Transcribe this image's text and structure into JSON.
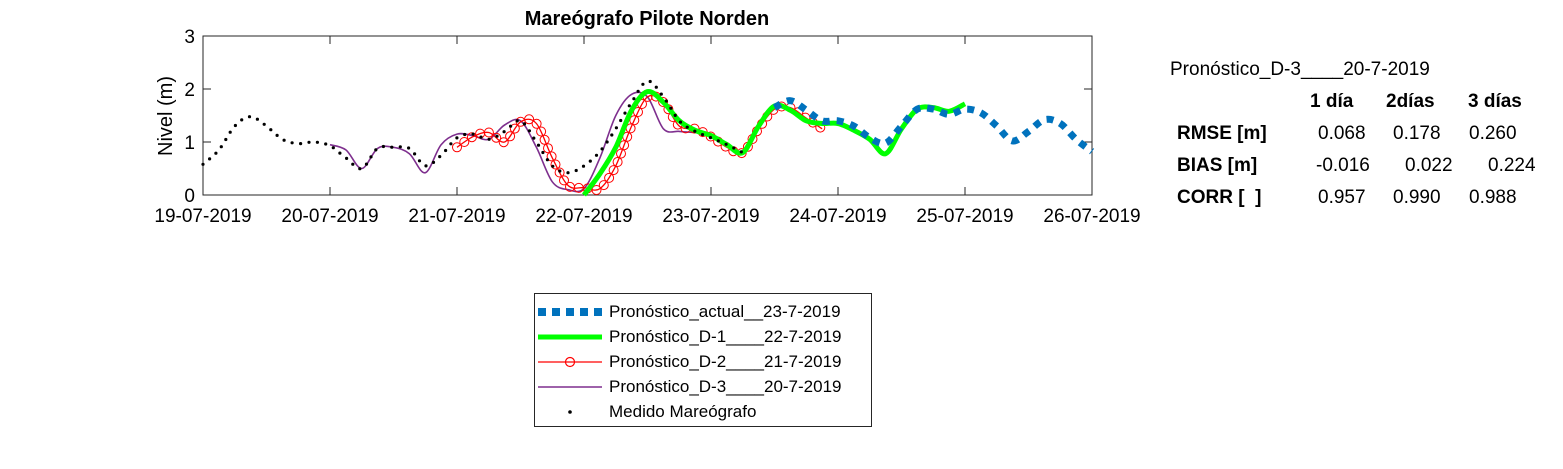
{
  "chart_data": {
    "type": "line",
    "title": "Mareógrafo Pilote Norden",
    "xlabel": "",
    "ylabel": "Nivel (m)",
    "ylim": [
      0,
      3
    ],
    "yticks": [
      0,
      1,
      2,
      3
    ],
    "xlim": [
      "2019-07-19T00:00",
      "2019-07-26T00:00"
    ],
    "xtick_labels": [
      "19-07-2019",
      "20-07-2019",
      "21-07-2019",
      "22-07-2019",
      "23-07-2019",
      "24-07-2019",
      "25-07-2019",
      "26-07-2019"
    ],
    "grid": false,
    "legend_position": "below-center",
    "series": [
      {
        "name": "Pronóstico_actual__23-7-2019",
        "color": "#0072BD",
        "style": "thick-dotted",
        "points": [
          [
            "2019-07-23T12:00",
            1.65
          ],
          [
            "2019-07-23T15:00",
            1.78
          ],
          [
            "2019-07-23T18:00",
            1.6
          ],
          [
            "2019-07-23T21:00",
            1.4
          ],
          [
            "2019-07-24T00:00",
            1.4
          ],
          [
            "2019-07-24T03:00",
            1.3
          ],
          [
            "2019-07-24T06:00",
            1.08
          ],
          [
            "2019-07-24T09:00",
            0.98
          ],
          [
            "2019-07-24T12:00",
            1.3
          ],
          [
            "2019-07-24T15:00",
            1.62
          ],
          [
            "2019-07-24T18:00",
            1.62
          ],
          [
            "2019-07-24T21:00",
            1.52
          ],
          [
            "2019-07-25T00:00",
            1.62
          ],
          [
            "2019-07-25T03:00",
            1.55
          ],
          [
            "2019-07-25T06:00",
            1.3
          ],
          [
            "2019-07-25T09:00",
            1.02
          ],
          [
            "2019-07-25T12:00",
            1.2
          ],
          [
            "2019-07-25T15:00",
            1.42
          ],
          [
            "2019-07-25T18:00",
            1.35
          ],
          [
            "2019-07-25T21:00",
            1.05
          ],
          [
            "2019-07-26T00:00",
            0.82
          ]
        ]
      },
      {
        "name": "Pronóstico_D-1____22-7-2019",
        "color": "#00FF00",
        "style": "thick-solid",
        "points": [
          [
            "2019-07-22T00:00",
            0.0
          ],
          [
            "2019-07-22T03:00",
            0.4
          ],
          [
            "2019-07-22T06:00",
            0.9
          ],
          [
            "2019-07-22T09:00",
            1.6
          ],
          [
            "2019-07-22T12:00",
            1.95
          ],
          [
            "2019-07-22T15:00",
            1.75
          ],
          [
            "2019-07-22T18:00",
            1.4
          ],
          [
            "2019-07-22T21:00",
            1.22
          ],
          [
            "2019-07-23T00:00",
            1.12
          ],
          [
            "2019-07-23T03:00",
            0.95
          ],
          [
            "2019-07-23T06:00",
            0.8
          ],
          [
            "2019-07-23T09:00",
            1.3
          ],
          [
            "2019-07-23T12:00",
            1.68
          ],
          [
            "2019-07-23T15:00",
            1.6
          ],
          [
            "2019-07-23T18:00",
            1.4
          ],
          [
            "2019-07-23T21:00",
            1.35
          ],
          [
            "2019-07-24T00:00",
            1.35
          ],
          [
            "2019-07-24T03:00",
            1.22
          ],
          [
            "2019-07-24T06:00",
            1.05
          ],
          [
            "2019-07-24T09:00",
            0.78
          ],
          [
            "2019-07-24T12:00",
            1.25
          ],
          [
            "2019-07-24T15:00",
            1.62
          ],
          [
            "2019-07-24T18:00",
            1.65
          ],
          [
            "2019-07-24T21:00",
            1.58
          ],
          [
            "2019-07-25T00:00",
            1.72
          ]
        ]
      },
      {
        "name": "Pronóstico_D-2____21-7-2019",
        "color": "#FF0000",
        "style": "solid-circle-markers",
        "points": [
          [
            "2019-07-21T00:00",
            0.9
          ],
          [
            "2019-07-21T03:00",
            1.1
          ],
          [
            "2019-07-21T06:00",
            1.18
          ],
          [
            "2019-07-21T09:00",
            1.0
          ],
          [
            "2019-07-21T12:00",
            1.38
          ],
          [
            "2019-07-21T15:00",
            1.35
          ],
          [
            "2019-07-21T18:00",
            0.7
          ],
          [
            "2019-07-21T21:00",
            0.18
          ],
          [
            "2019-07-22T00:00",
            0.14
          ],
          [
            "2019-07-22T03:00",
            0.12
          ],
          [
            "2019-07-22T06:00",
            0.55
          ],
          [
            "2019-07-22T09:00",
            1.3
          ],
          [
            "2019-07-22T12:00",
            1.85
          ],
          [
            "2019-07-22T15:00",
            1.75
          ],
          [
            "2019-07-22T18:00",
            1.3
          ],
          [
            "2019-07-22T21:00",
            1.25
          ],
          [
            "2019-07-23T00:00",
            1.1
          ],
          [
            "2019-07-23T03:00",
            0.9
          ],
          [
            "2019-07-23T06:00",
            0.8
          ],
          [
            "2019-07-23T09:00",
            1.25
          ],
          [
            "2019-07-23T12:00",
            1.62
          ],
          [
            "2019-07-23T15:00",
            1.65
          ],
          [
            "2019-07-23T18:00",
            1.45
          ],
          [
            "2019-07-23T21:00",
            1.25
          ]
        ]
      },
      {
        "name": "Pronóstico_D-3____20-7-2019",
        "color": "#7E2F8E",
        "style": "solid",
        "points": [
          [
            "2019-07-20T00:00",
            0.95
          ],
          [
            "2019-07-20T03:00",
            0.85
          ],
          [
            "2019-07-20T06:00",
            0.5
          ],
          [
            "2019-07-20T09:00",
            0.88
          ],
          [
            "2019-07-20T12:00",
            0.9
          ],
          [
            "2019-07-20T15:00",
            0.78
          ],
          [
            "2019-07-20T18:00",
            0.42
          ],
          [
            "2019-07-20T21:00",
            0.95
          ],
          [
            "2019-07-21T00:00",
            1.15
          ],
          [
            "2019-07-21T03:00",
            1.12
          ],
          [
            "2019-07-21T06:00",
            1.05
          ],
          [
            "2019-07-21T09:00",
            1.32
          ],
          [
            "2019-07-21T12:00",
            1.4
          ],
          [
            "2019-07-21T15:00",
            0.9
          ],
          [
            "2019-07-21T18:00",
            0.25
          ],
          [
            "2019-07-21T21:00",
            0.1
          ],
          [
            "2019-07-22T00:00",
            0.12
          ],
          [
            "2019-07-22T03:00",
            0.7
          ],
          [
            "2019-07-22T06:00",
            1.5
          ],
          [
            "2019-07-22T09:00",
            1.9
          ],
          [
            "2019-07-22T12:00",
            1.85
          ],
          [
            "2019-07-22T15:00",
            1.25
          ],
          [
            "2019-07-22T18:00",
            1.2
          ],
          [
            "2019-07-22T21:00",
            1.18
          ],
          [
            "2019-07-23T00:00",
            1.15
          ]
        ]
      },
      {
        "name": "Medido Mareógrafo",
        "color": "#000000",
        "style": "dots",
        "points": [
          [
            "2019-07-19T00:00",
            0.58
          ],
          [
            "2019-07-19T03:00",
            0.85
          ],
          [
            "2019-07-19T06:00",
            1.3
          ],
          [
            "2019-07-19T09:00",
            1.48
          ],
          [
            "2019-07-19T12:00",
            1.3
          ],
          [
            "2019-07-19T15:00",
            1.05
          ],
          [
            "2019-07-19T18:00",
            0.97
          ],
          [
            "2019-07-19T21:00",
            1.0
          ],
          [
            "2019-07-20T00:00",
            0.93
          ],
          [
            "2019-07-20T03:00",
            0.7
          ],
          [
            "2019-07-20T06:00",
            0.5
          ],
          [
            "2019-07-20T09:00",
            0.88
          ],
          [
            "2019-07-20T12:00",
            0.9
          ],
          [
            "2019-07-20T15:00",
            0.88
          ],
          [
            "2019-07-20T18:00",
            0.55
          ],
          [
            "2019-07-20T21:00",
            0.75
          ],
          [
            "2019-07-21T00:00",
            1.08
          ],
          [
            "2019-07-21T03:00",
            1.15
          ],
          [
            "2019-07-21T06:00",
            1.05
          ],
          [
            "2019-07-21T09:00",
            1.2
          ],
          [
            "2019-07-21T12:00",
            1.4
          ],
          [
            "2019-07-21T15:00",
            1.0
          ],
          [
            "2019-07-21T18:00",
            0.55
          ],
          [
            "2019-07-21T21:00",
            0.42
          ],
          [
            "2019-07-22T00:00",
            0.55
          ],
          [
            "2019-07-22T03:00",
            0.82
          ],
          [
            "2019-07-22T06:00",
            1.25
          ],
          [
            "2019-07-22T09:00",
            1.75
          ],
          [
            "2019-07-22T12:00",
            2.15
          ],
          [
            "2019-07-22T15:00",
            1.85
          ],
          [
            "2019-07-22T18:00",
            1.4
          ],
          [
            "2019-07-22T21:00",
            1.2
          ],
          [
            "2019-07-23T00:00",
            1.08
          ],
          [
            "2019-07-23T03:00",
            0.95
          ],
          [
            "2019-07-23T06:00",
            0.8
          ]
        ]
      }
    ]
  },
  "stats": {
    "title": "Pronóstico_D-3____20-7-2019",
    "col_headers": [
      "1 día",
      "2días",
      "3 días"
    ],
    "rows": [
      {
        "label": "RMSE [m]",
        "values": [
          "0.068",
          "0.178",
          "0.260"
        ]
      },
      {
        "label": "BIAS [m]",
        "values": [
          "-0.016",
          "0.022",
          "0.224"
        ]
      },
      {
        "label": "CORR [  ]",
        "values": [
          "0.957",
          "0.990",
          "0.988"
        ]
      }
    ]
  }
}
